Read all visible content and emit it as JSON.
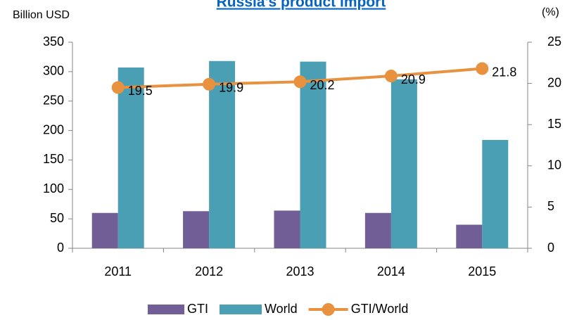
{
  "chart_data": {
    "type": "bar-line",
    "title": "Russia's product import",
    "y_label": "Billion USD",
    "y2_label": "(%)",
    "categories": [
      "2011",
      "2012",
      "2013",
      "2014",
      "2015"
    ],
    "series": [
      {
        "name": "GTI",
        "type": "bar",
        "color": "#725e97",
        "values": [
          60,
          63,
          64,
          60,
          40
        ]
      },
      {
        "name": "World",
        "type": "bar",
        "color": "#4a9fb5",
        "values": [
          307,
          318,
          317,
          287,
          184
        ]
      },
      {
        "name": "GTI/World",
        "type": "line",
        "axis": "y2",
        "color": "#e8913e",
        "values": [
          19.5,
          19.9,
          20.2,
          20.9,
          21.8
        ]
      }
    ],
    "ylim": [
      0,
      350
    ],
    "yticks": [
      0,
      50,
      100,
      150,
      200,
      250,
      300,
      350
    ],
    "y2lim": [
      0,
      25
    ],
    "y2ticks": [
      0,
      5,
      10,
      15,
      20,
      25
    ]
  }
}
